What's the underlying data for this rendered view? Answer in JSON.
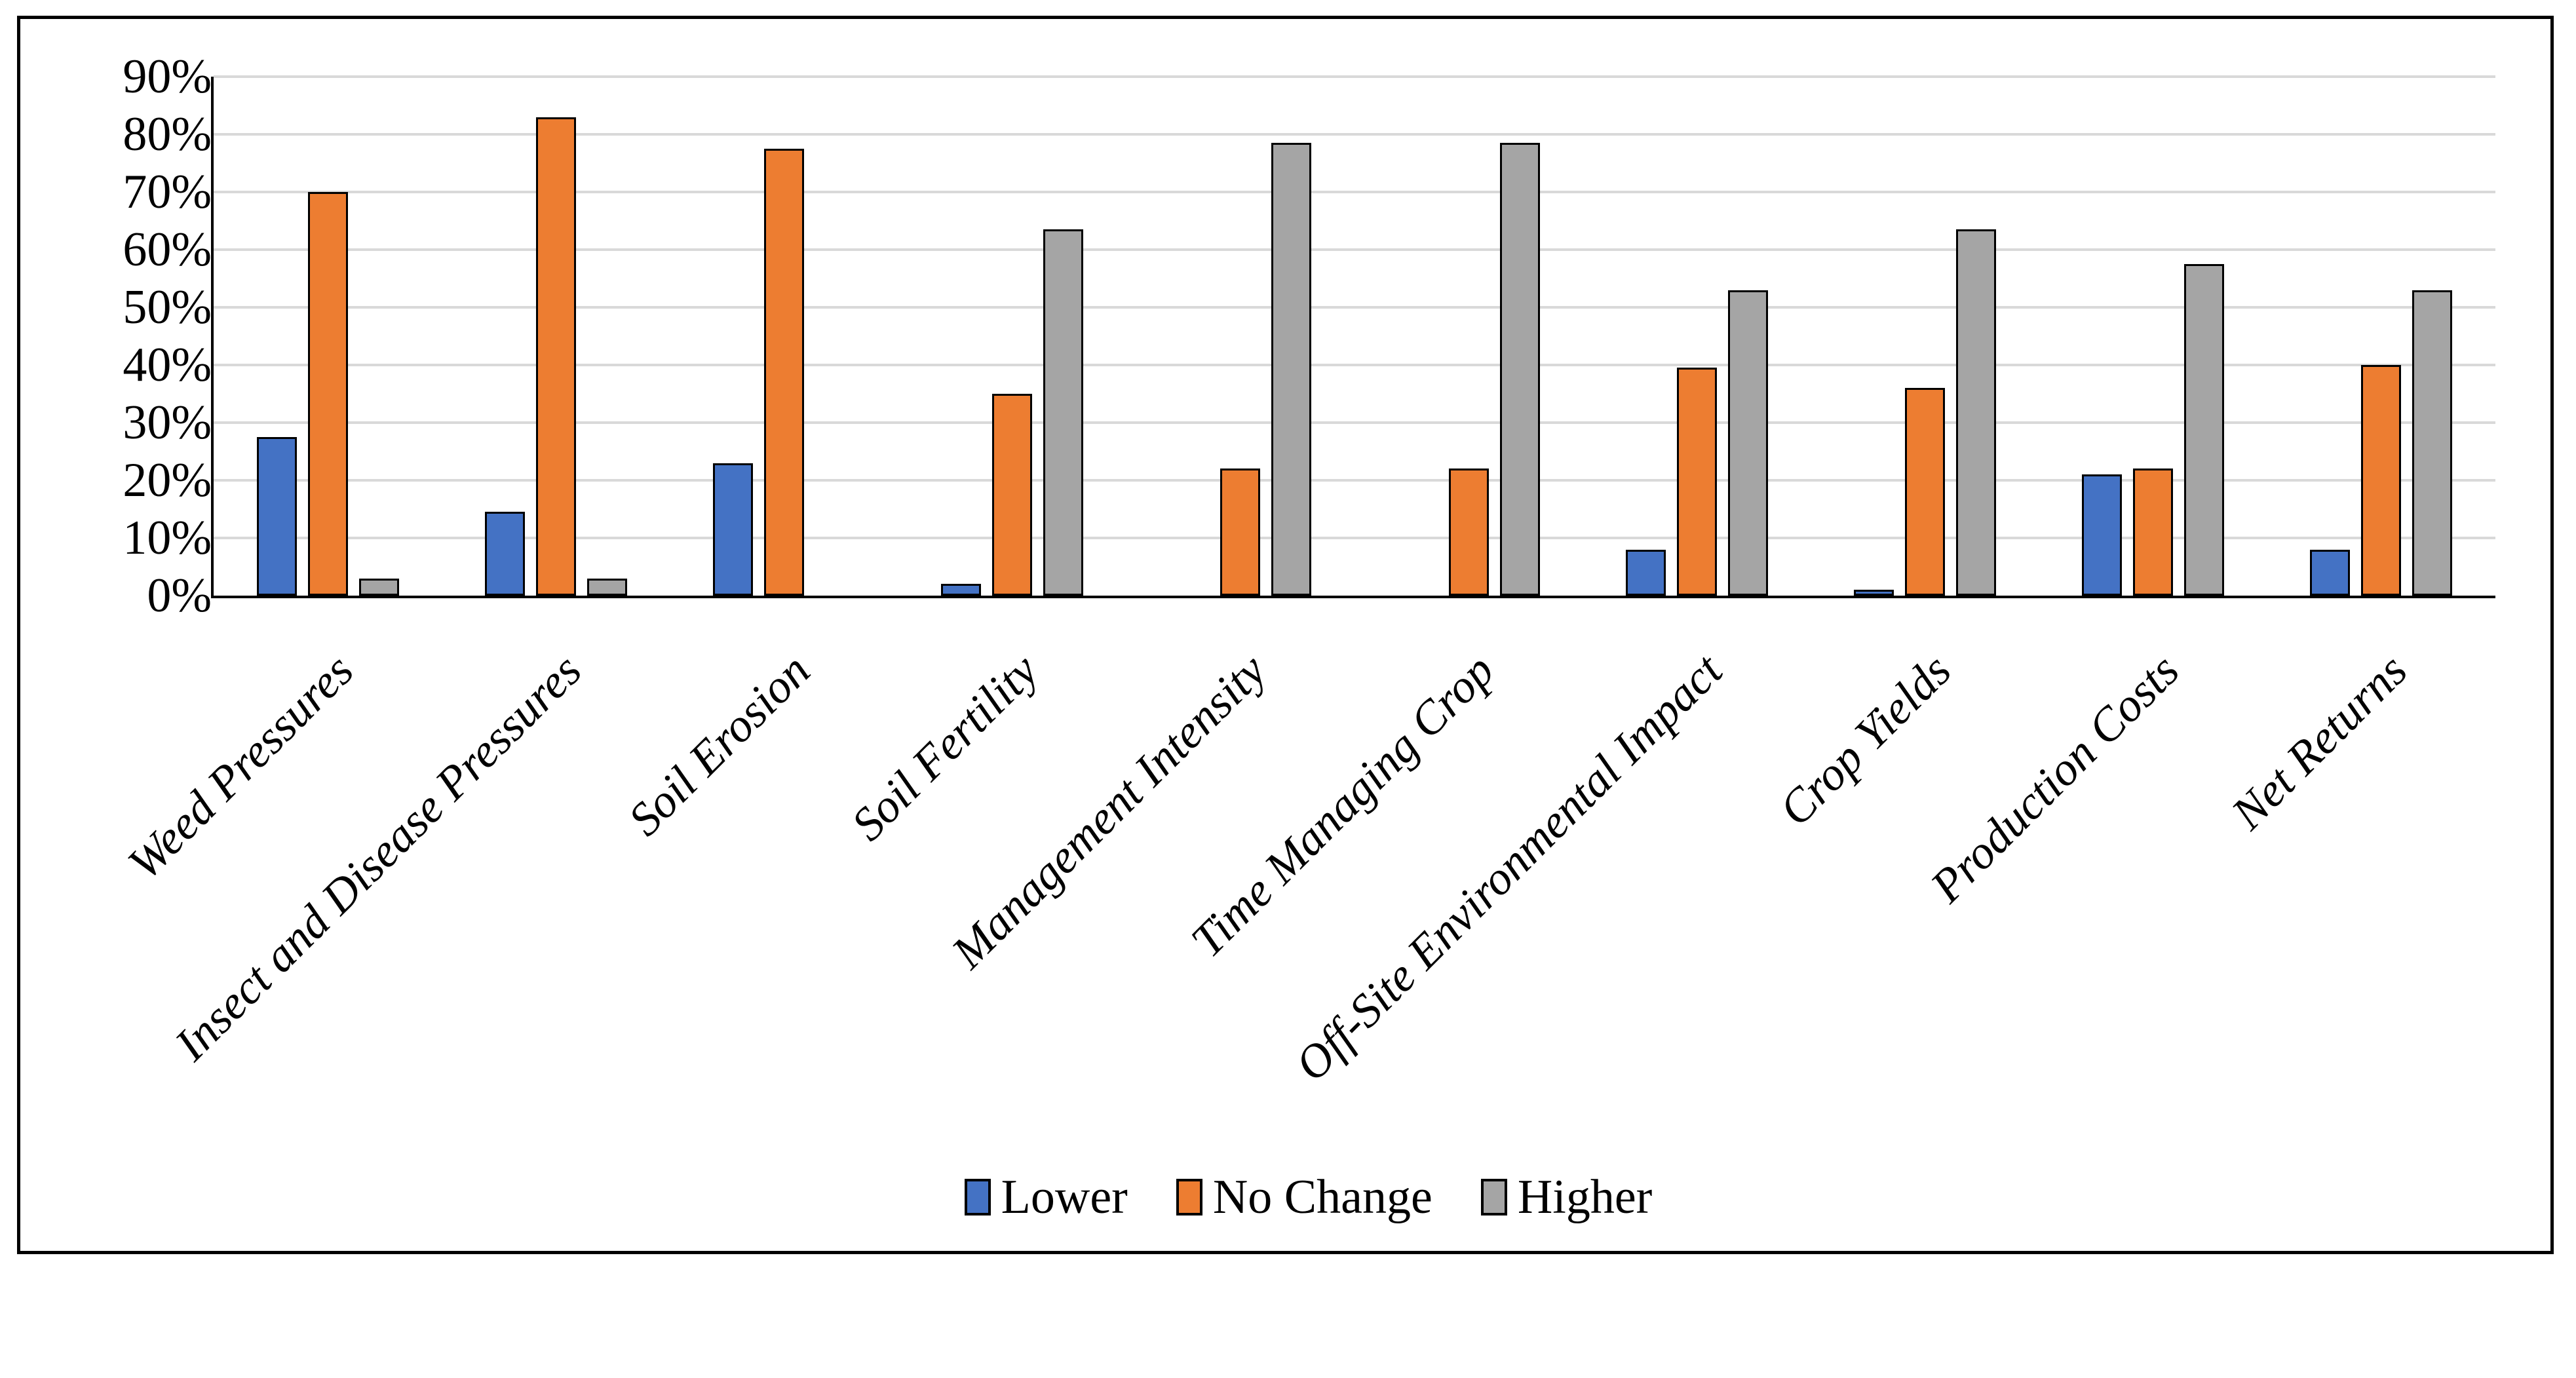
{
  "figure": {
    "background": "#FFFFFF",
    "border_color": "#000000"
  },
  "chart_data": {
    "type": "bar",
    "title": "",
    "xlabel": "",
    "ylabel": "",
    "categories": [
      "Weed Pressures",
      "Insect and Disease Pressures",
      "Soil Erosion",
      "Soil Fertility",
      "Management Intensity",
      "Time Managing Crop",
      "Off-Site Environmental Impact",
      "Crop Yields",
      "Production Costs",
      "Net Returns"
    ],
    "series": [
      {
        "name": "Lower",
        "color": "#4472C4",
        "values": [
          27.5,
          14.5,
          23,
          2,
          0,
          0,
          8,
          1,
          21,
          8
        ]
      },
      {
        "name": "No Change",
        "color": "#ED7D31",
        "values": [
          70,
          83,
          77.5,
          35,
          22,
          22,
          39.5,
          36,
          22,
          40
        ]
      },
      {
        "name": "Higher",
        "color": "#A5A5A5",
        "values": [
          3,
          3,
          0,
          63.5,
          78.5,
          78.5,
          53,
          63.5,
          57.5,
          53
        ]
      }
    ],
    "ylim": [
      0,
      90
    ],
    "yticks": [
      "0%",
      "10%",
      "20%",
      "30%",
      "40%",
      "50%",
      "60%",
      "70%",
      "80%",
      "90%"
    ],
    "grid": true,
    "gridline_color": "#D9D9D9",
    "bar_outline_color": "#000000",
    "axis_color": "#000000",
    "legend_position": "bottom",
    "category_label_rotation_deg": 45
  }
}
